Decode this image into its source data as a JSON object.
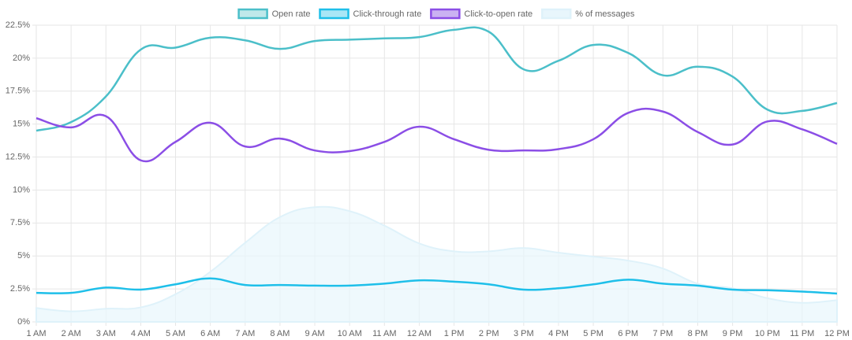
{
  "chart_data": {
    "type": "line",
    "categories": [
      "1 AM",
      "2 AM",
      "3 AM",
      "4 AM",
      "5 AM",
      "6 AM",
      "7 AM",
      "8 AM",
      "9 AM",
      "10 AM",
      "11 AM",
      "12 AM",
      "1 PM",
      "2 PM",
      "3 PM",
      "4 PM",
      "5 PM",
      "6 PM",
      "7 PM",
      "8 PM",
      "9 PM",
      "10 PM",
      "11 PM",
      "12 PM"
    ],
    "series": [
      {
        "name": "Open rate",
        "color": "#4bbfc9",
        "fill_color": "#bfe8ea",
        "values": [
          14.5,
          15.15,
          17.1,
          20.65,
          20.8,
          21.55,
          21.35,
          20.7,
          21.3,
          21.4,
          21.5,
          21.6,
          22.15,
          22.0,
          19.15,
          19.8,
          21.0,
          20.4,
          18.7,
          19.35,
          18.6,
          16.1,
          16.0,
          16.6
        ]
      },
      {
        "name": "Click-through rate",
        "color": "#1ebfe9",
        "fill_color": "#a9e6f6",
        "values": [
          2.2,
          2.2,
          2.6,
          2.45,
          2.85,
          3.3,
          2.8,
          2.8,
          2.75,
          2.75,
          2.9,
          3.15,
          3.05,
          2.85,
          2.45,
          2.55,
          2.85,
          3.2,
          2.9,
          2.75,
          2.45,
          2.4,
          2.3,
          2.15
        ]
      },
      {
        "name": "Click-to-open rate",
        "color": "#8b4ee6",
        "fill_color": "#cab2f2",
        "values": [
          15.45,
          14.75,
          15.6,
          12.25,
          13.65,
          15.1,
          13.3,
          13.9,
          13.0,
          12.95,
          13.65,
          14.8,
          13.85,
          13.05,
          13.0,
          13.1,
          13.85,
          15.85,
          15.95,
          14.4,
          13.45,
          15.2,
          14.6,
          13.5
        ]
      },
      {
        "name": "% of messages",
        "color": "#dff2fa",
        "fill_color": "#e8f6fc",
        "area": true,
        "values": [
          1.05,
          0.8,
          1.0,
          1.1,
          2.1,
          3.8,
          6.0,
          7.95,
          8.7,
          8.4,
          7.3,
          5.95,
          5.35,
          5.35,
          5.6,
          5.25,
          4.95,
          4.65,
          4.05,
          2.9,
          2.55,
          1.8,
          1.45,
          1.65
        ]
      }
    ],
    "ylim": [
      0,
      22.5
    ],
    "yticks": [
      {
        "value": 0,
        "label": "0%"
      },
      {
        "value": 2.5,
        "label": "2.5%"
      },
      {
        "value": 5,
        "label": "5%"
      },
      {
        "value": 7.5,
        "label": "7.5%"
      },
      {
        "value": 10,
        "label": "10%"
      },
      {
        "value": 12.5,
        "label": "12.5%"
      },
      {
        "value": 15,
        "label": "15%"
      },
      {
        "value": 17.5,
        "label": "17.5%"
      },
      {
        "value": 20,
        "label": "20%"
      },
      {
        "value": 22.5,
        "label": "22.5%"
      }
    ],
    "grid": true,
    "legend": "top"
  }
}
